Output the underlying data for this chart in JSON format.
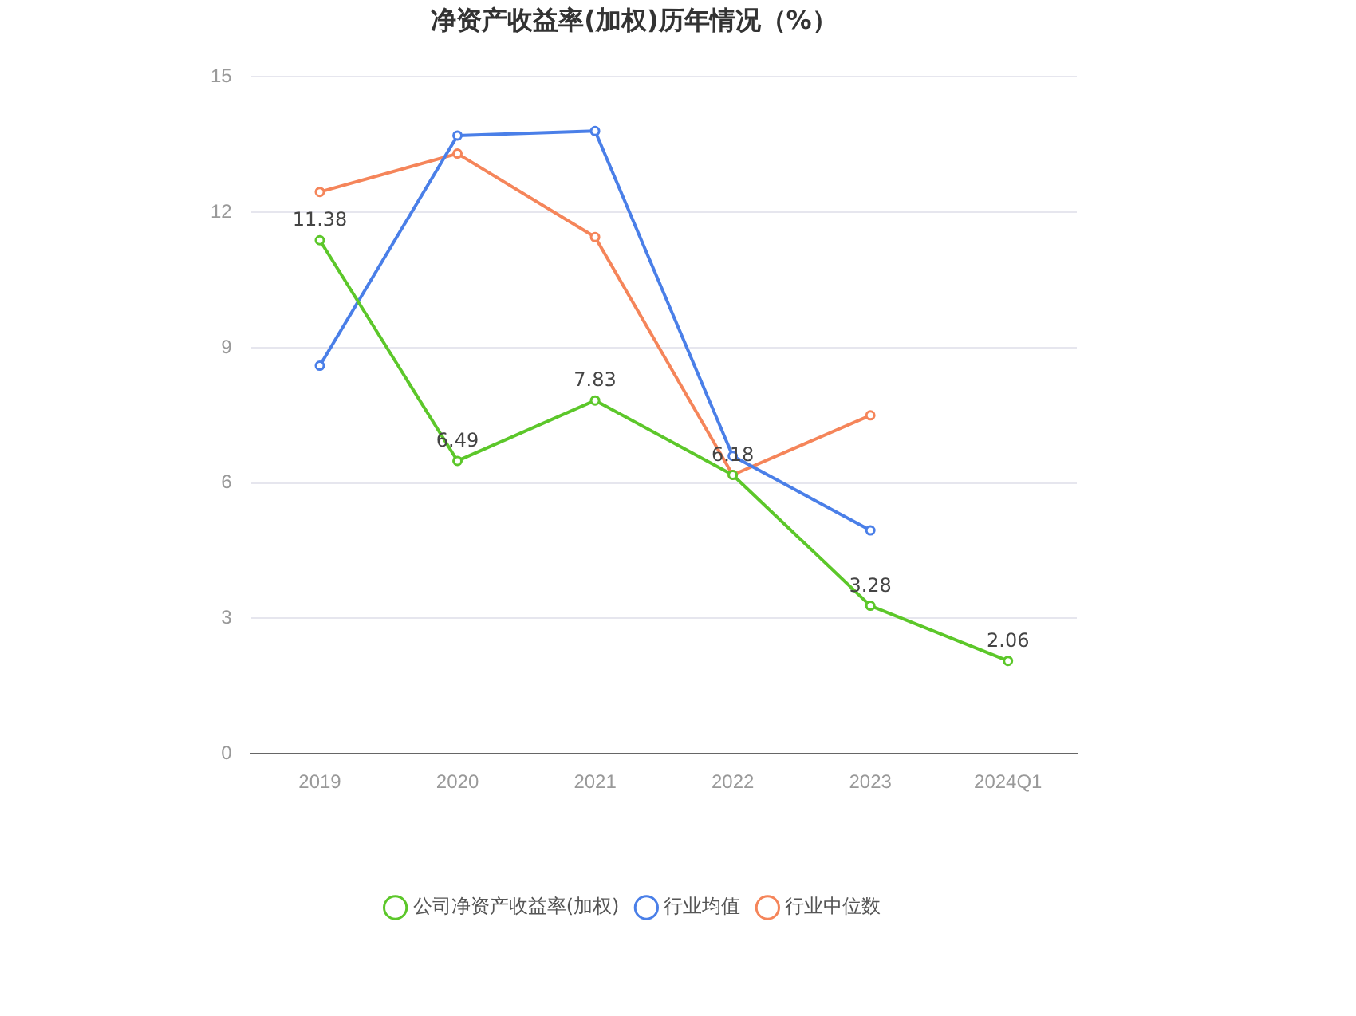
{
  "chart_data": {
    "type": "line",
    "title": "净资产收益率(加权)历年情况（%）",
    "categories": [
      "2019",
      "2020",
      "2021",
      "2022",
      "2023",
      "2024Q1"
    ],
    "series": [
      {
        "name": "公司净资产收益率(加权)",
        "color": "#5cc72a",
        "values": [
          11.38,
          6.49,
          7.83,
          6.18,
          3.28,
          2.06
        ],
        "value_labels": [
          "11.38",
          "6.49",
          "7.83",
          "6.18",
          "3.28",
          "2.06"
        ]
      },
      {
        "name": "行业均值",
        "color": "#4a7fe8",
        "values": [
          8.6,
          13.7,
          13.8,
          6.6,
          4.95,
          null
        ]
      },
      {
        "name": "行业中位数",
        "color": "#f5855a",
        "values": [
          12.45,
          13.3,
          11.45,
          6.18,
          7.5,
          null
        ]
      }
    ],
    "ylim": [
      0,
      15
    ],
    "yticks": [
      0,
      3,
      6,
      9,
      12,
      15
    ],
    "grid": "y",
    "legend": "bottom",
    "marker": "circle",
    "line_style": "solid"
  }
}
